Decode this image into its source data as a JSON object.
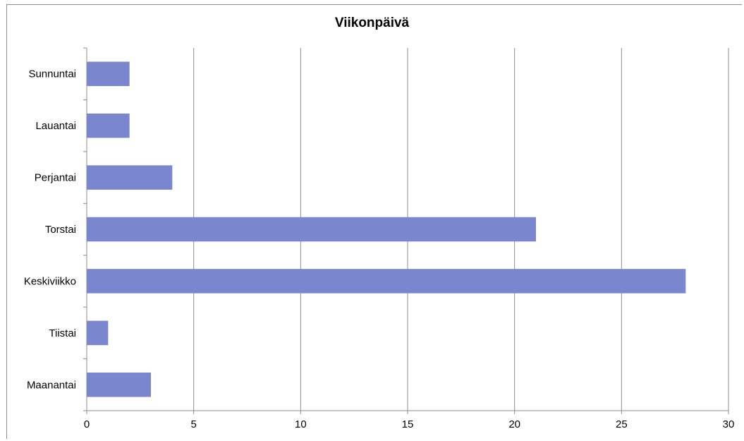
{
  "chart_data": {
    "type": "bar",
    "orientation": "horizontal",
    "title": "Viikonpäivä",
    "xlabel": "",
    "ylabel": "",
    "categories": [
      "Maanantai",
      "Tiistai",
      "Keskiviikko",
      "Torstai",
      "Perjantai",
      "Lauantai",
      "Sunnuntai"
    ],
    "values": [
      3,
      1,
      28,
      21,
      4,
      2,
      2
    ],
    "xlim": [
      0,
      30
    ],
    "xticks": [
      "0",
      "5",
      "10",
      "15",
      "20",
      "25",
      "30"
    ],
    "grid": true,
    "legend": false,
    "bar_color": "#7a87cf",
    "grid_color": "#8c8c8c"
  }
}
